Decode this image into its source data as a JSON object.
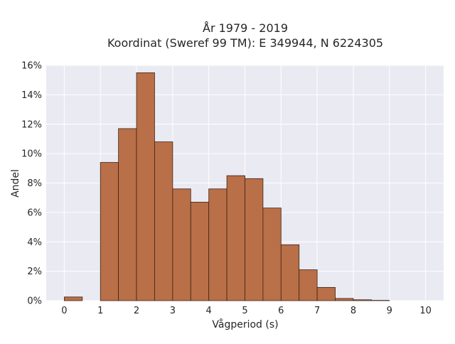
{
  "chart_data": {
    "type": "bar",
    "title_line1": "År 1979 - 2019",
    "title_line2": "Koordinat (Sweref 99 TM): E 349944, N 6224305",
    "xlabel": "Vågperiod (s)",
    "ylabel": "Andel",
    "x_range": [
      -0.5,
      10.5
    ],
    "ylim": [
      0,
      0.16
    ],
    "bin_width": 0.5,
    "x_ticks": [
      0,
      1,
      2,
      3,
      4,
      5,
      6,
      7,
      8,
      9,
      10
    ],
    "x_tick_labels": [
      "0",
      "1",
      "2",
      "3",
      "4",
      "5",
      "6",
      "7",
      "8",
      "9",
      "10"
    ],
    "y_ticks": [
      0,
      0.02,
      0.04,
      0.06,
      0.08,
      0.1,
      0.12,
      0.14,
      0.16
    ],
    "y_tick_labels": [
      "0%",
      "2%",
      "4%",
      "6%",
      "8%",
      "10%",
      "12%",
      "14%",
      "16%"
    ],
    "bins": [
      {
        "x0": 0.0,
        "value": 0.0025
      },
      {
        "x0": 1.0,
        "value": 0.094
      },
      {
        "x0": 1.5,
        "value": 0.117
      },
      {
        "x0": 2.0,
        "value": 0.155
      },
      {
        "x0": 2.5,
        "value": 0.108
      },
      {
        "x0": 3.0,
        "value": 0.076
      },
      {
        "x0": 3.5,
        "value": 0.067
      },
      {
        "x0": 4.0,
        "value": 0.076
      },
      {
        "x0": 4.5,
        "value": 0.085
      },
      {
        "x0": 5.0,
        "value": 0.083
      },
      {
        "x0": 5.5,
        "value": 0.063
      },
      {
        "x0": 6.0,
        "value": 0.038
      },
      {
        "x0": 6.5,
        "value": 0.021
      },
      {
        "x0": 7.0,
        "value": 0.009
      },
      {
        "x0": 7.5,
        "value": 0.0015
      },
      {
        "x0": 8.0,
        "value": 0.0006
      },
      {
        "x0": 8.5,
        "value": 0.0002
      }
    ],
    "grid": true,
    "colors": {
      "bar_fill": "#b96f47",
      "bar_stroke": "#3c2418",
      "plot_bg": "#eaeaf2",
      "grid": "#ffffff"
    }
  }
}
